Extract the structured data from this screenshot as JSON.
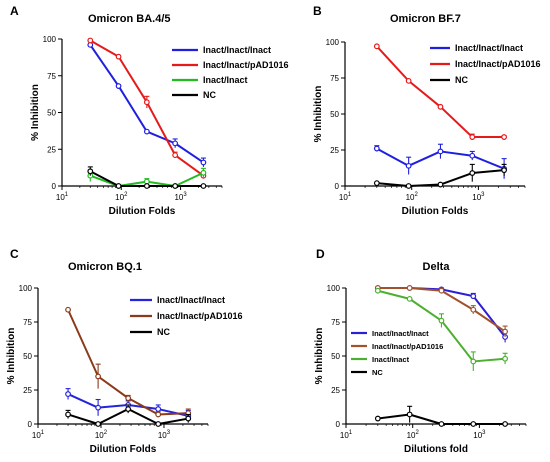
{
  "chart_data": [
    {
      "panel": "A",
      "type": "line",
      "title": "Omicron BA.4/5",
      "xlabel": "Dilution Folds",
      "ylabel": "% Inhibition",
      "x_scale": "log",
      "xlim": [
        10,
        5000
      ],
      "ylim": [
        0,
        100
      ],
      "yticks": [
        0,
        25,
        50,
        75,
        100
      ],
      "xticks": [
        10,
        100,
        1000
      ],
      "x": [
        30,
        90,
        270,
        810,
        2430
      ],
      "legend_position": "right",
      "series": [
        {
          "name": "Inact/Inact/Inact",
          "color": "#1f1fe0",
          "values": [
            96,
            68,
            37,
            29,
            16
          ],
          "errors": [
            0,
            0,
            0,
            3,
            3
          ]
        },
        {
          "name": "Inact/Inact/pAD1016",
          "color": "#e51a1a",
          "values": [
            99,
            88,
            57,
            21,
            7
          ],
          "errors": [
            0,
            0,
            4,
            2,
            2
          ]
        },
        {
          "name": "Inact/Inact",
          "color": "#22bb22",
          "values": [
            7,
            0,
            3,
            0,
            9
          ],
          "errors": [
            4,
            0,
            2,
            0,
            3
          ]
        },
        {
          "name": "NC",
          "color": "#000000",
          "values": [
            10,
            0,
            0,
            0,
            0
          ],
          "errors": [
            3,
            0,
            0,
            0,
            0
          ]
        }
      ]
    },
    {
      "panel": "B",
      "type": "line",
      "title": "Omicron BF.7",
      "xlabel": "Dilution Folds",
      "ylabel": "% Inhibition",
      "x_scale": "log",
      "xlim": [
        10,
        5000
      ],
      "ylim": [
        0,
        100
      ],
      "yticks": [
        0,
        25,
        50,
        75,
        100
      ],
      "xticks": [
        10,
        100,
        1000
      ],
      "x": [
        30,
        90,
        270,
        810,
        2430
      ],
      "legend_position": "top-right",
      "series": [
        {
          "name": "Inact/Inact/Inact",
          "color": "#1f1fe0",
          "values": [
            26,
            14,
            24,
            21,
            12
          ],
          "errors": [
            2,
            6,
            5,
            3,
            7
          ]
        },
        {
          "name": "Inact/Inact/pAD1016",
          "color": "#e51a1a",
          "values": [
            97,
            73,
            55,
            34,
            34
          ],
          "errors": [
            0,
            0,
            0,
            2,
            1
          ]
        },
        {
          "name": "NC",
          "color": "#000000",
          "values": [
            2,
            0,
            1,
            9,
            11
          ],
          "errors": [
            0,
            0,
            0,
            6,
            4
          ]
        }
      ]
    },
    {
      "panel": "C",
      "type": "line",
      "title": "Omicron BQ.1",
      "xlabel": "Dilution Folds",
      "ylabel": "% Inhibition",
      "x_scale": "log",
      "xlim": [
        10,
        5000
      ],
      "ylim": [
        0,
        100
      ],
      "yticks": [
        0,
        25,
        50,
        75,
        100
      ],
      "xticks": [
        10,
        100,
        1000
      ],
      "x": [
        30,
        90,
        270,
        810,
        2430
      ],
      "legend_position": "top-right",
      "series": [
        {
          "name": "Inact/Inact/Inact",
          "color": "#2424dd",
          "values": [
            22,
            12,
            14,
            11,
            6
          ],
          "errors": [
            4,
            6,
            3,
            3,
            4
          ]
        },
        {
          "name": "Inact/Inact/pAD1016",
          "color": "#8b3a1a",
          "values": [
            84,
            35,
            19,
            7,
            8
          ],
          "errors": [
            0,
            9,
            2,
            2,
            3
          ]
        },
        {
          "name": "NC",
          "color": "#000000",
          "values": [
            7,
            0,
            11,
            0,
            4
          ],
          "errors": [
            3,
            0,
            3,
            0,
            3
          ]
        }
      ]
    },
    {
      "panel": "D",
      "type": "line",
      "title": "Delta",
      "xlabel": "Dilutions fold",
      "ylabel": "% Inhibition",
      "x_scale": "log",
      "xlim": [
        10,
        5000
      ],
      "ylim": [
        0,
        100
      ],
      "yticks": [
        0,
        25,
        50,
        75,
        100
      ],
      "xticks": [
        10,
        100,
        1000
      ],
      "x": [
        30,
        90,
        270,
        810,
        2430
      ],
      "legend_position": "center-left",
      "series": [
        {
          "name": "Inact/Inact/Inact",
          "color": "#2a1ed6",
          "values": [
            100,
            100,
            99,
            94,
            64
          ],
          "errors": [
            0,
            0,
            0,
            2,
            4
          ]
        },
        {
          "name": "Inact/Inact/pAD1016",
          "color": "#a0522d",
          "values": [
            100,
            100,
            98,
            84,
            68
          ],
          "errors": [
            0,
            0,
            2,
            3,
            4
          ]
        },
        {
          "name": "Inact/Inact",
          "color": "#4caf2e",
          "values": [
            98,
            92,
            76,
            46,
            48
          ],
          "errors": [
            0,
            0,
            5,
            7,
            4
          ]
        },
        {
          "name": "NC",
          "color": "#000000",
          "values": [
            4,
            7,
            0,
            0,
            0
          ],
          "errors": [
            0,
            6,
            0,
            0,
            0
          ]
        }
      ]
    }
  ]
}
